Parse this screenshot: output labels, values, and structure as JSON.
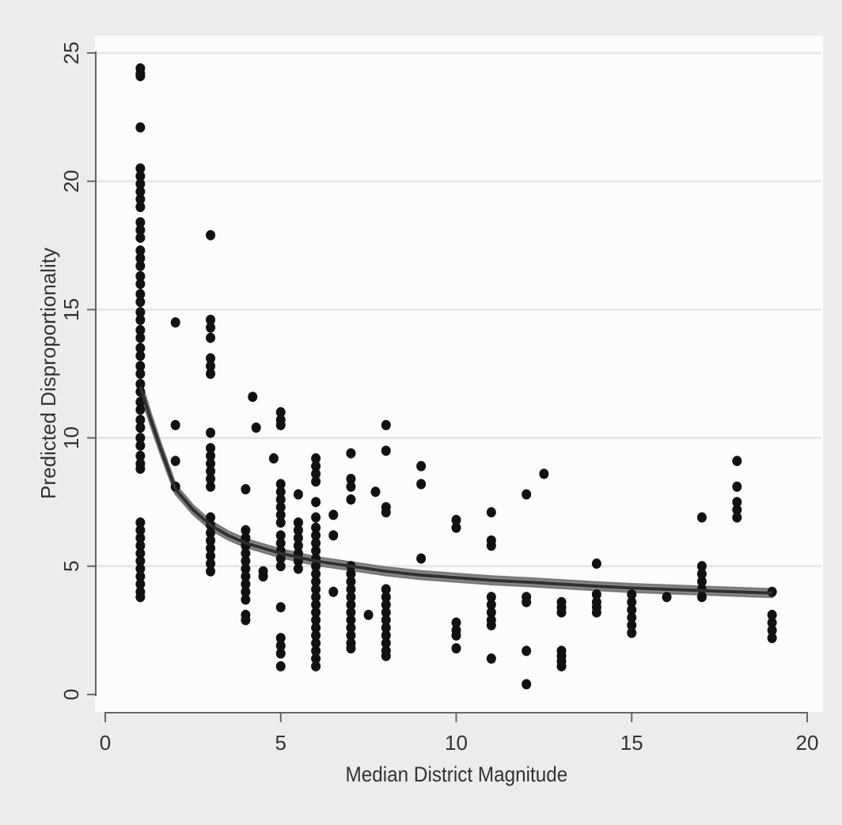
{
  "chart_data": {
    "type": "scatter",
    "title": "",
    "xlabel": "Median District Magnitude",
    "ylabel": "Predicted Disproportionality",
    "xlim": [
      0,
      20
    ],
    "ylim": [
      0,
      25
    ],
    "x_ticks": [
      "0",
      "5",
      "10",
      "15",
      "20"
    ],
    "y_ticks": [
      "0",
      "5",
      "10",
      "15",
      "20",
      "25"
    ],
    "grid": "horizontal",
    "legend": "none",
    "colors": {
      "background": "#ececec",
      "plot_area": "#fcfcfc",
      "points": "#111111",
      "fit_line": "#303030",
      "ci_band": "#7a7a7a",
      "grid": "#e6e6e6"
    },
    "series": [
      {
        "type": "scatter",
        "points": [
          [
            1,
            24.4
          ],
          [
            1,
            24.2
          ],
          [
            1,
            24.1
          ],
          [
            1,
            22.1
          ],
          [
            1,
            20.5
          ],
          [
            1,
            20.2
          ],
          [
            1,
            19.9
          ],
          [
            1,
            19.6
          ],
          [
            1,
            19.3
          ],
          [
            1,
            19.0
          ],
          [
            1,
            18.4
          ],
          [
            1,
            18.1
          ],
          [
            1,
            17.8
          ],
          [
            1,
            17.3
          ],
          [
            1,
            17.0
          ],
          [
            1,
            16.7
          ],
          [
            1,
            16.3
          ],
          [
            1,
            16.0
          ],
          [
            1,
            15.6
          ],
          [
            1,
            15.3
          ],
          [
            1,
            14.9
          ],
          [
            1,
            14.6
          ],
          [
            1,
            14.2
          ],
          [
            1,
            13.9
          ],
          [
            1,
            13.5
          ],
          [
            1,
            13.2
          ],
          [
            1,
            12.8
          ],
          [
            1,
            12.5
          ],
          [
            1,
            12.1
          ],
          [
            1,
            11.8
          ],
          [
            1,
            11.4
          ],
          [
            1,
            11.1
          ],
          [
            1,
            10.7
          ],
          [
            1,
            10.4
          ],
          [
            1,
            10.0
          ],
          [
            1,
            9.7
          ],
          [
            1,
            9.3
          ],
          [
            1,
            9.0
          ],
          [
            1,
            8.8
          ],
          [
            1,
            6.7
          ],
          [
            1,
            6.4
          ],
          [
            1,
            6.1
          ],
          [
            1,
            5.8
          ],
          [
            1,
            5.5
          ],
          [
            1,
            5.2
          ],
          [
            1,
            4.9
          ],
          [
            1,
            4.6
          ],
          [
            1,
            4.3
          ],
          [
            1,
            4.0
          ],
          [
            1,
            3.8
          ],
          [
            2,
            14.5
          ],
          [
            2,
            10.5
          ],
          [
            2,
            9.1
          ],
          [
            2,
            8.1
          ],
          [
            3,
            17.9
          ],
          [
            3,
            14.6
          ],
          [
            3,
            14.3
          ],
          [
            3,
            13.9
          ],
          [
            3,
            13.1
          ],
          [
            3,
            12.8
          ],
          [
            3,
            12.5
          ],
          [
            3,
            10.2
          ],
          [
            3,
            9.6
          ],
          [
            3,
            9.3
          ],
          [
            3,
            9.0
          ],
          [
            3,
            8.7
          ],
          [
            3,
            8.4
          ],
          [
            3,
            8.1
          ],
          [
            3,
            6.9
          ],
          [
            3,
            6.6
          ],
          [
            3,
            6.3
          ],
          [
            3,
            6.0
          ],
          [
            3,
            5.7
          ],
          [
            3,
            5.4
          ],
          [
            3,
            5.1
          ],
          [
            3,
            4.8
          ],
          [
            4,
            8.0
          ],
          [
            4,
            6.4
          ],
          [
            4,
            6.1
          ],
          [
            4,
            5.8
          ],
          [
            4,
            5.5
          ],
          [
            4,
            5.2
          ],
          [
            4,
            4.9
          ],
          [
            4,
            4.6
          ],
          [
            4,
            4.3
          ],
          [
            4,
            4.0
          ],
          [
            4,
            3.7
          ],
          [
            4,
            3.1
          ],
          [
            4,
            2.9
          ],
          [
            4.2,
            11.6
          ],
          [
            4.3,
            10.4
          ],
          [
            4.5,
            4.8
          ],
          [
            4.5,
            4.6
          ],
          [
            4.8,
            9.2
          ],
          [
            5,
            11.0
          ],
          [
            5,
            10.7
          ],
          [
            5,
            10.5
          ],
          [
            5,
            8.2
          ],
          [
            5,
            7.9
          ],
          [
            5,
            7.6
          ],
          [
            5,
            7.3
          ],
          [
            5,
            7.0
          ],
          [
            5,
            6.7
          ],
          [
            5,
            6.2
          ],
          [
            5,
            5.9
          ],
          [
            5,
            5.6
          ],
          [
            5,
            5.3
          ],
          [
            5,
            5.0
          ],
          [
            5,
            3.4
          ],
          [
            5,
            2.2
          ],
          [
            5,
            1.9
          ],
          [
            5,
            1.6
          ],
          [
            5,
            1.1
          ],
          [
            5.5,
            7.8
          ],
          [
            5.5,
            6.7
          ],
          [
            5.5,
            6.4
          ],
          [
            5.5,
            6.1
          ],
          [
            5.5,
            5.8
          ],
          [
            5.5,
            5.5
          ],
          [
            5.5,
            5.2
          ],
          [
            5.5,
            4.9
          ],
          [
            6,
            9.2
          ],
          [
            6,
            8.9
          ],
          [
            6,
            8.6
          ],
          [
            6,
            8.3
          ],
          [
            6,
            7.5
          ],
          [
            6,
            6.9
          ],
          [
            6,
            6.5
          ],
          [
            6,
            6.2
          ],
          [
            6,
            5.9
          ],
          [
            6,
            5.6
          ],
          [
            6,
            5.3
          ],
          [
            6,
            5.0
          ],
          [
            6,
            4.7
          ],
          [
            6,
            4.4
          ],
          [
            6,
            4.1
          ],
          [
            6,
            3.8
          ],
          [
            6,
            3.5
          ],
          [
            6,
            3.2
          ],
          [
            6,
            2.9
          ],
          [
            6,
            2.6
          ],
          [
            6,
            2.3
          ],
          [
            6,
            2.0
          ],
          [
            6,
            1.7
          ],
          [
            6,
            1.4
          ],
          [
            6,
            1.1
          ],
          [
            6.5,
            7.0
          ],
          [
            6.5,
            6.2
          ],
          [
            6.5,
            4.0
          ],
          [
            7,
            9.4
          ],
          [
            7,
            8.4
          ],
          [
            7,
            8.1
          ],
          [
            7,
            7.6
          ],
          [
            7,
            5.0
          ],
          [
            7,
            4.7
          ],
          [
            7,
            4.4
          ],
          [
            7,
            4.1
          ],
          [
            7,
            3.8
          ],
          [
            7,
            3.5
          ],
          [
            7,
            3.2
          ],
          [
            7,
            2.9
          ],
          [
            7,
            2.6
          ],
          [
            7,
            2.3
          ],
          [
            7,
            2.0
          ],
          [
            7,
            1.8
          ],
          [
            7.5,
            3.1
          ],
          [
            7.7,
            7.9
          ],
          [
            8,
            10.5
          ],
          [
            8,
            9.5
          ],
          [
            8,
            7.3
          ],
          [
            8,
            7.1
          ],
          [
            8,
            4.1
          ],
          [
            8,
            3.8
          ],
          [
            8,
            3.5
          ],
          [
            8,
            3.2
          ],
          [
            8,
            2.9
          ],
          [
            8,
            2.6
          ],
          [
            8,
            2.3
          ],
          [
            8,
            2.0
          ],
          [
            8,
            1.7
          ],
          [
            8,
            1.5
          ],
          [
            9,
            8.9
          ],
          [
            9,
            8.2
          ],
          [
            9,
            5.3
          ],
          [
            10,
            6.8
          ],
          [
            10,
            6.5
          ],
          [
            10,
            2.8
          ],
          [
            10,
            2.5
          ],
          [
            10,
            2.3
          ],
          [
            10,
            1.8
          ],
          [
            11,
            7.1
          ],
          [
            11,
            6.0
          ],
          [
            11,
            5.8
          ],
          [
            11,
            3.8
          ],
          [
            11,
            3.5
          ],
          [
            11,
            3.2
          ],
          [
            11,
            2.9
          ],
          [
            11,
            2.7
          ],
          [
            11,
            1.4
          ],
          [
            12,
            7.8
          ],
          [
            12,
            3.8
          ],
          [
            12,
            3.6
          ],
          [
            12,
            1.7
          ],
          [
            12,
            0.4
          ],
          [
            12.5,
            8.6
          ],
          [
            13,
            3.6
          ],
          [
            13,
            3.4
          ],
          [
            13,
            3.2
          ],
          [
            13,
            1.7
          ],
          [
            13,
            1.5
          ],
          [
            13,
            1.3
          ],
          [
            13,
            1.1
          ],
          [
            14,
            5.1
          ],
          [
            14,
            3.9
          ],
          [
            14,
            3.6
          ],
          [
            14,
            3.4
          ],
          [
            14,
            3.2
          ],
          [
            15,
            3.9
          ],
          [
            15,
            3.6
          ],
          [
            15,
            3.3
          ],
          [
            15,
            3.0
          ],
          [
            15,
            2.7
          ],
          [
            15,
            2.4
          ],
          [
            16,
            3.8
          ],
          [
            17,
            6.9
          ],
          [
            17,
            5.0
          ],
          [
            17,
            4.7
          ],
          [
            17,
            4.4
          ],
          [
            17,
            4.1
          ],
          [
            17,
            3.8
          ],
          [
            18,
            9.1
          ],
          [
            18,
            8.1
          ],
          [
            18,
            7.5
          ],
          [
            18,
            7.2
          ],
          [
            18,
            6.9
          ],
          [
            19,
            4.0
          ],
          [
            19,
            3.1
          ],
          [
            19,
            2.8
          ],
          [
            19,
            2.5
          ],
          [
            19,
            2.2
          ]
        ]
      },
      {
        "type": "line",
        "points": [
          [
            1,
            12.0
          ],
          [
            1.3,
            10.7
          ],
          [
            1.6,
            9.5
          ],
          [
            2,
            8.0
          ],
          [
            2.5,
            7.2
          ],
          [
            3,
            6.6
          ],
          [
            3.5,
            6.2
          ],
          [
            4,
            5.9
          ],
          [
            5,
            5.5
          ],
          [
            6,
            5.2
          ],
          [
            7,
            5.0
          ],
          [
            8,
            4.8
          ],
          [
            9,
            4.65
          ],
          [
            10,
            4.55
          ],
          [
            11,
            4.45
          ],
          [
            12,
            4.38
          ],
          [
            13,
            4.3
          ],
          [
            14,
            4.22
          ],
          [
            15,
            4.15
          ],
          [
            16,
            4.1
          ],
          [
            17,
            4.05
          ],
          [
            18,
            4.0
          ],
          [
            19,
            3.95
          ]
        ],
        "ci_width": [
          0.5,
          0.45,
          0.4,
          0.35,
          0.33,
          0.32,
          0.31,
          0.3,
          0.3,
          0.3,
          0.3,
          0.3,
          0.3,
          0.3,
          0.3,
          0.3,
          0.3,
          0.3,
          0.3,
          0.3,
          0.3,
          0.3,
          0.3
        ]
      }
    ]
  }
}
